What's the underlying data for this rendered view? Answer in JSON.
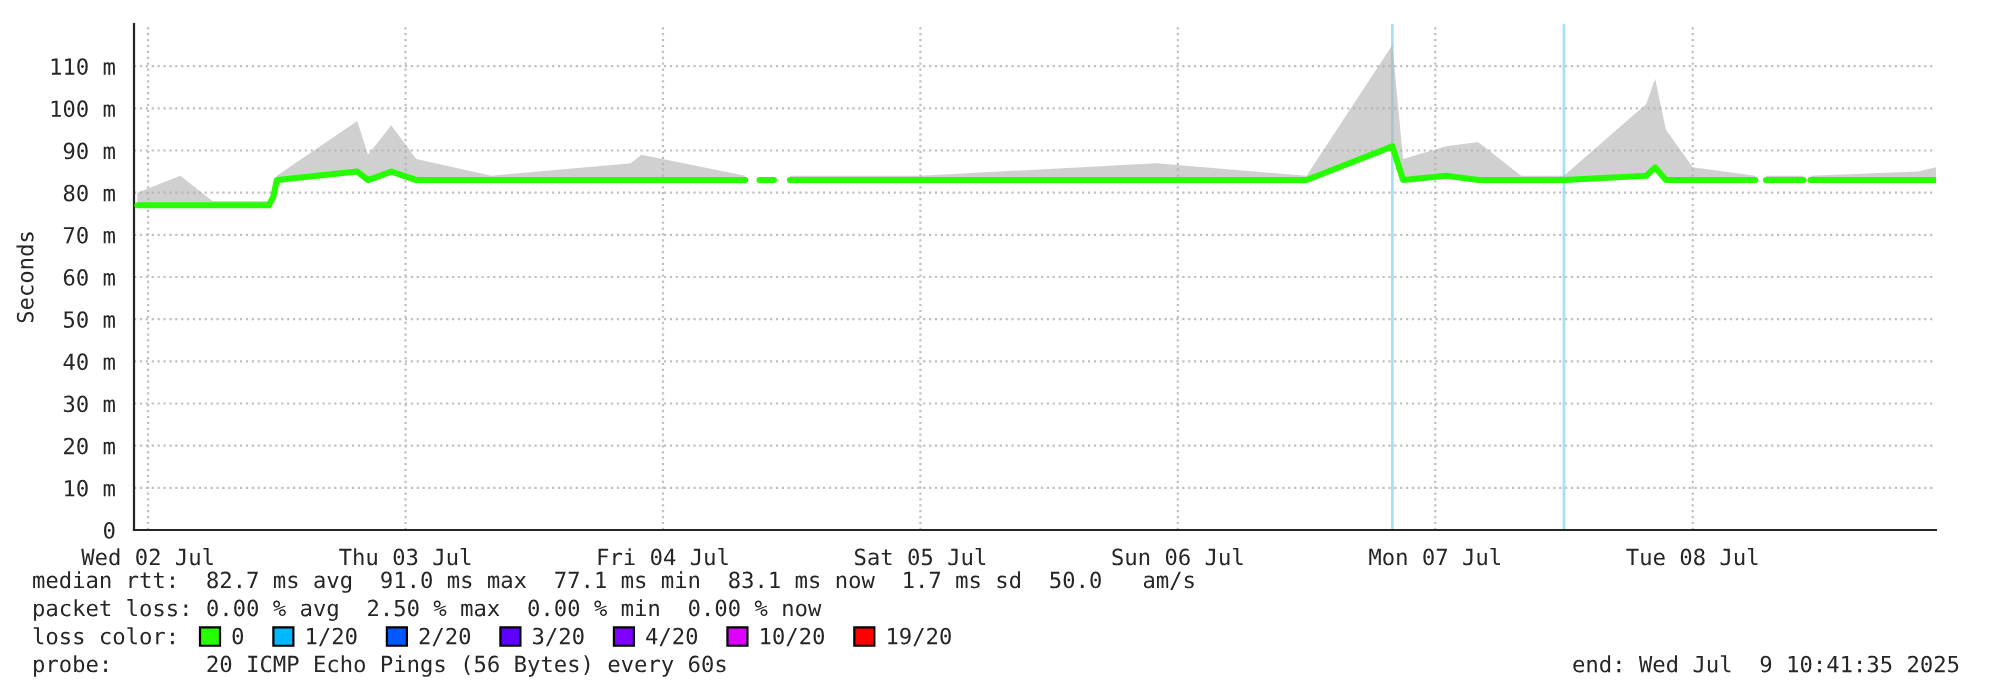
{
  "chart_data": {
    "type": "line",
    "ylabel": "Seconds",
    "x": [
      "2025-07-02T11:00",
      "2025-07-02T15:00",
      "2025-07-02T18:00",
      "2025-07-02T23:15",
      "2025-07-02T23:40",
      "2025-07-03T00:00",
      "2025-07-03T07:30",
      "2025-07-03T08:30",
      "2025-07-03T10:40",
      "2025-07-03T13:00",
      "2025-07-03T20:00",
      "2025-07-04T09:00",
      "2025-07-04T10:00",
      "2025-07-04T19:40",
      "2025-07-04T20:20",
      "2025-07-04T21:00",
      "2025-07-04T22:20",
      "2025-07-04T23:00",
      "2025-07-04T23:50",
      "2025-07-05T12:00",
      "2025-07-06T10:00",
      "2025-07-07T00:00",
      "2025-07-07T08:00",
      "2025-07-07T09:00",
      "2025-07-07T13:00",
      "2025-07-07T16:00",
      "2025-07-07T20:00",
      "2025-07-08T00:00",
      "2025-07-08T07:40",
      "2025-07-08T08:30",
      "2025-07-08T09:30",
      "2025-07-08T12:00",
      "2025-07-08T17:50",
      "2025-07-08T18:20",
      "2025-07-08T18:50",
      "2025-07-08T22:20",
      "2025-07-08T22:40",
      "2025-07-08T23:00",
      "2025-07-09T09:00",
      "2025-07-09T10:41"
    ],
    "series": [
      {
        "name": "0",
        "color": "#26ff00",
        "values": [
          77,
          77,
          77,
          77,
          79,
          83,
          85,
          83,
          85,
          83,
          83,
          83,
          83,
          83,
          null,
          83,
          83,
          null,
          83,
          83,
          83,
          83,
          91,
          83,
          84,
          83,
          83,
          83,
          84,
          86,
          83,
          83,
          83,
          null,
          83,
          83,
          null,
          83,
          83,
          83
        ],
        "lower": [
          77,
          77,
          77,
          77,
          79,
          83,
          85,
          83,
          85,
          83,
          83,
          83,
          83,
          83,
          null,
          null,
          null,
          null,
          83,
          83,
          83,
          83,
          91,
          83,
          84,
          83,
          83,
          83,
          84,
          86,
          83,
          83,
          83,
          null,
          83,
          83,
          null,
          83,
          83,
          83
        ],
        "upper": [
          80,
          84,
          78,
          78,
          81,
          84,
          97,
          89,
          96,
          88,
          84,
          87,
          89,
          84,
          null,
          null,
          null,
          null,
          84,
          84,
          87,
          84,
          115,
          88,
          91,
          92,
          84,
          84,
          101,
          107,
          95,
          86,
          84,
          null,
          84,
          84,
          null,
          84,
          85,
          86
        ]
      },
      {
        "name": "1/20",
        "color": "#00b8ff",
        "values": [
          null,
          null,
          null,
          null,
          null,
          null,
          null,
          null,
          null,
          null,
          null,
          null,
          null,
          null,
          null,
          null,
          null,
          null,
          null,
          null,
          null,
          null,
          null,
          null,
          null,
          null,
          null,
          null,
          null,
          null,
          null,
          null,
          null,
          null,
          null,
          null,
          null,
          null,
          null,
          null
        ]
      },
      {
        "name": "2/20",
        "color": "#0059ff",
        "values": [
          null,
          null,
          null,
          null,
          null,
          null,
          null,
          null,
          null,
          null,
          null,
          null,
          null,
          null,
          null,
          null,
          null,
          null,
          null,
          null,
          null,
          null,
          null,
          null,
          null,
          null,
          null,
          null,
          null,
          null,
          null,
          null,
          null,
          null,
          null,
          null,
          null,
          null,
          null,
          null
        ]
      },
      {
        "name": "3/20",
        "color": "#5e00ff",
        "values": [
          null,
          null,
          null,
          null,
          null,
          null,
          null,
          null,
          null,
          null,
          null,
          null,
          null,
          null,
          null,
          null,
          null,
          null,
          null,
          null,
          null,
          null,
          null,
          null,
          null,
          null,
          null,
          null,
          null,
          null,
          null,
          null,
          null,
          null,
          null,
          null,
          null,
          null,
          null,
          null
        ]
      },
      {
        "name": "4/20",
        "color": "#7e00ff",
        "values": [
          null,
          null,
          null,
          null,
          null,
          null,
          null,
          null,
          null,
          null,
          null,
          null,
          null,
          null,
          null,
          null,
          null,
          null,
          null,
          null,
          null,
          null,
          null,
          null,
          null,
          null,
          null,
          null,
          null,
          null,
          null,
          null,
          null,
          null,
          null,
          null,
          null,
          null,
          null,
          null
        ]
      },
      {
        "name": "10/20",
        "color": "#dd00ff",
        "values": [
          null,
          null,
          null,
          null,
          null,
          null,
          null,
          null,
          null,
          null,
          null,
          null,
          null,
          null,
          null,
          null,
          null,
          null,
          null,
          null,
          null,
          null,
          null,
          null,
          null,
          null,
          null,
          null,
          null,
          null,
          null,
          null,
          null,
          null,
          null,
          null,
          null,
          null,
          null,
          null
        ]
      },
      {
        "name": "19/20",
        "color": "#ff0000",
        "values": [
          null,
          null,
          null,
          null,
          null,
          null,
          null,
          null,
          null,
          null,
          null,
          null,
          null,
          null,
          null,
          null,
          null,
          null,
          null,
          null,
          null,
          null,
          null,
          null,
          null,
          null,
          null,
          null,
          null,
          null,
          null,
          null,
          null,
          null,
          null,
          null,
          null,
          null,
          null,
          null
        ]
      }
    ],
    "legend": "bottom left",
    "legend_title": "loss color:",
    "xlim": [
      "2025-07-02T10:41",
      "2025-07-09T10:41"
    ],
    "xticks": [
      {
        "value": "2025-07-02T12:00",
        "label": "Wed 02 Jul"
      },
      {
        "value": "2025-07-03T12:00",
        "label": "Thu 03 Jul"
      },
      {
        "value": "2025-07-04T12:00",
        "label": "Fri 04 Jul"
      },
      {
        "value": "2025-07-05T12:00",
        "label": "Sat 05 Jul"
      },
      {
        "value": "2025-07-06T12:00",
        "label": "Sun 06 Jul"
      },
      {
        "value": "2025-07-07T12:00",
        "label": "Mon 07 Jul"
      },
      {
        "value": "2025-07-08T12:00",
        "label": "Tue 08 Jul"
      }
    ],
    "ylim": [
      0,
      120
    ],
    "yticks": [
      0,
      {
        "value": 10,
        "label": "10 m"
      },
      {
        "value": 20,
        "label": "20 m"
      },
      {
        "value": 30,
        "label": "30 m"
      },
      {
        "value": 40,
        "label": "40 m"
      },
      {
        "value": 50,
        "label": "50 m"
      },
      {
        "value": 60,
        "label": "60 m"
      },
      {
        "value": 70,
        "label": "70 m"
      },
      {
        "value": 80,
        "label": "80 m"
      },
      {
        "value": 90,
        "label": "90 m"
      },
      {
        "value": 100,
        "label": "100 m"
      },
      {
        "value": 110,
        "label": "110 m"
      }
    ],
    "grid": true,
    "ref_lines": [
      {
        "axis": "x",
        "value": "2025-07-07T08:00",
        "color": "#a6e0f5"
      },
      {
        "axis": "x",
        "value": "2025-07-08T00:00",
        "color": "#a6e0f5"
      }
    ],
    "annotations": [
      "median rtt:  82.7 ms avg  91.0 ms max  77.1 ms min  83.1 ms now  1.7 ms sd  50.0   am/s",
      "packet loss: 0.00 % avg  2.50 % max  0.00 % min  0.00 % now",
      "probe:       20 ICMP Echo Pings (56 Bytes) every 60s",
      "end: Wed Jul  9 10:41:35 2025"
    ]
  }
}
